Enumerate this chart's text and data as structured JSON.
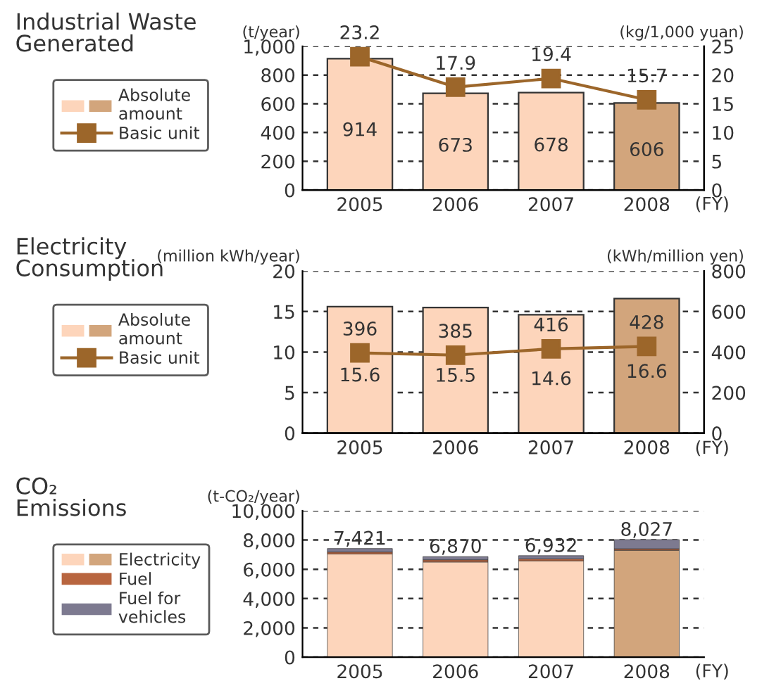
{
  "chart_data": [
    {
      "type": "bar",
      "title": "Industrial Waste\nGenerated",
      "categories": [
        "2005",
        "2006",
        "2007",
        "2008"
      ],
      "xlabel": "(FY)",
      "ylabel": "(t/year)",
      "y2label": "(kg/1,000 yuan)",
      "series": [
        {
          "name": "Absolute\namount",
          "colors": [
            "#fdd5bb",
            "#fdd5bb",
            "#fdd5bb",
            "#d2a57c"
          ],
          "values": [
            914,
            673,
            678,
            606
          ]
        },
        {
          "name": "Basic unit",
          "type": "line",
          "axis": "y2",
          "color": "#9c662a",
          "values": [
            23.2,
            17.9,
            19.4,
            15.7
          ]
        }
      ],
      "ylim": [
        0,
        1000
      ],
      "yticks": [
        0,
        200,
        400,
        600,
        800,
        {
          "value": 1000,
          "label": "1,000"
        }
      ],
      "y2lim": [
        0,
        25
      ],
      "y2ticks": [
        0,
        5,
        10,
        15,
        20,
        25
      ],
      "grid": "y",
      "legend": "left",
      "marker": "square",
      "data_labels": true
    },
    {
      "type": "bar",
      "title": "Electricity\nConsumption",
      "categories": [
        "2005",
        "2006",
        "2007",
        "2008"
      ],
      "xlabel": "(FY)",
      "ylabel": "(million kWh/year)",
      "y2label": "(kWh/million yen)",
      "series": [
        {
          "name": "Absolute\namount",
          "colors": [
            "#fdd5bb",
            "#fdd5bb",
            "#fdd5bb",
            "#d2a57c"
          ],
          "values": [
            15.6,
            15.5,
            14.6,
            16.6
          ]
        },
        {
          "name": "Basic unit",
          "type": "line",
          "axis": "y2",
          "color": "#9c662a",
          "values": [
            396,
            385,
            416,
            428
          ]
        }
      ],
      "ylim": [
        0,
        20
      ],
      "yticks": [
        0,
        5,
        10,
        15,
        20
      ],
      "y2lim": [
        0,
        800
      ],
      "y2ticks": [
        0,
        200,
        400,
        600,
        800
      ],
      "grid": "y",
      "legend": "left",
      "marker": "square",
      "data_labels": true
    },
    {
      "type": "bar",
      "title": "CO₂\nEmissions",
      "categories": [
        "2005",
        "2006",
        "2007",
        "2008"
      ],
      "xlabel": "(FY)",
      "ylabel": "(t-CO₂/year)",
      "stacked": true,
      "series": [
        {
          "name": "Electricity",
          "colors": [
            "#fdd5bb",
            "#fdd5bb",
            "#fdd5bb",
            "#d2a57c"
          ],
          "values": [
            7050,
            6500,
            6580,
            7300
          ]
        },
        {
          "name": "Fuel",
          "color": "#b8653f",
          "values": [
            130,
            150,
            130,
            100
          ]
        },
        {
          "name": "Fuel for\nvehicles",
          "color": "#7d7a90",
          "values": [
            241,
            220,
            222,
            627
          ]
        }
      ],
      "totals": [
        "7,421",
        "6,870",
        "6,932",
        "8,027"
      ],
      "ylim": [
        0,
        10000
      ],
      "yticks": [
        0,
        {
          "value": 2000,
          "label": "2,000"
        },
        {
          "value": 4000,
          "label": "4,000"
        },
        {
          "value": 6000,
          "label": "6,000"
        },
        {
          "value": 8000,
          "label": "8,000"
        },
        {
          "value": 10000,
          "label": "10,000"
        }
      ],
      "grid": "y",
      "legend": "left"
    }
  ]
}
